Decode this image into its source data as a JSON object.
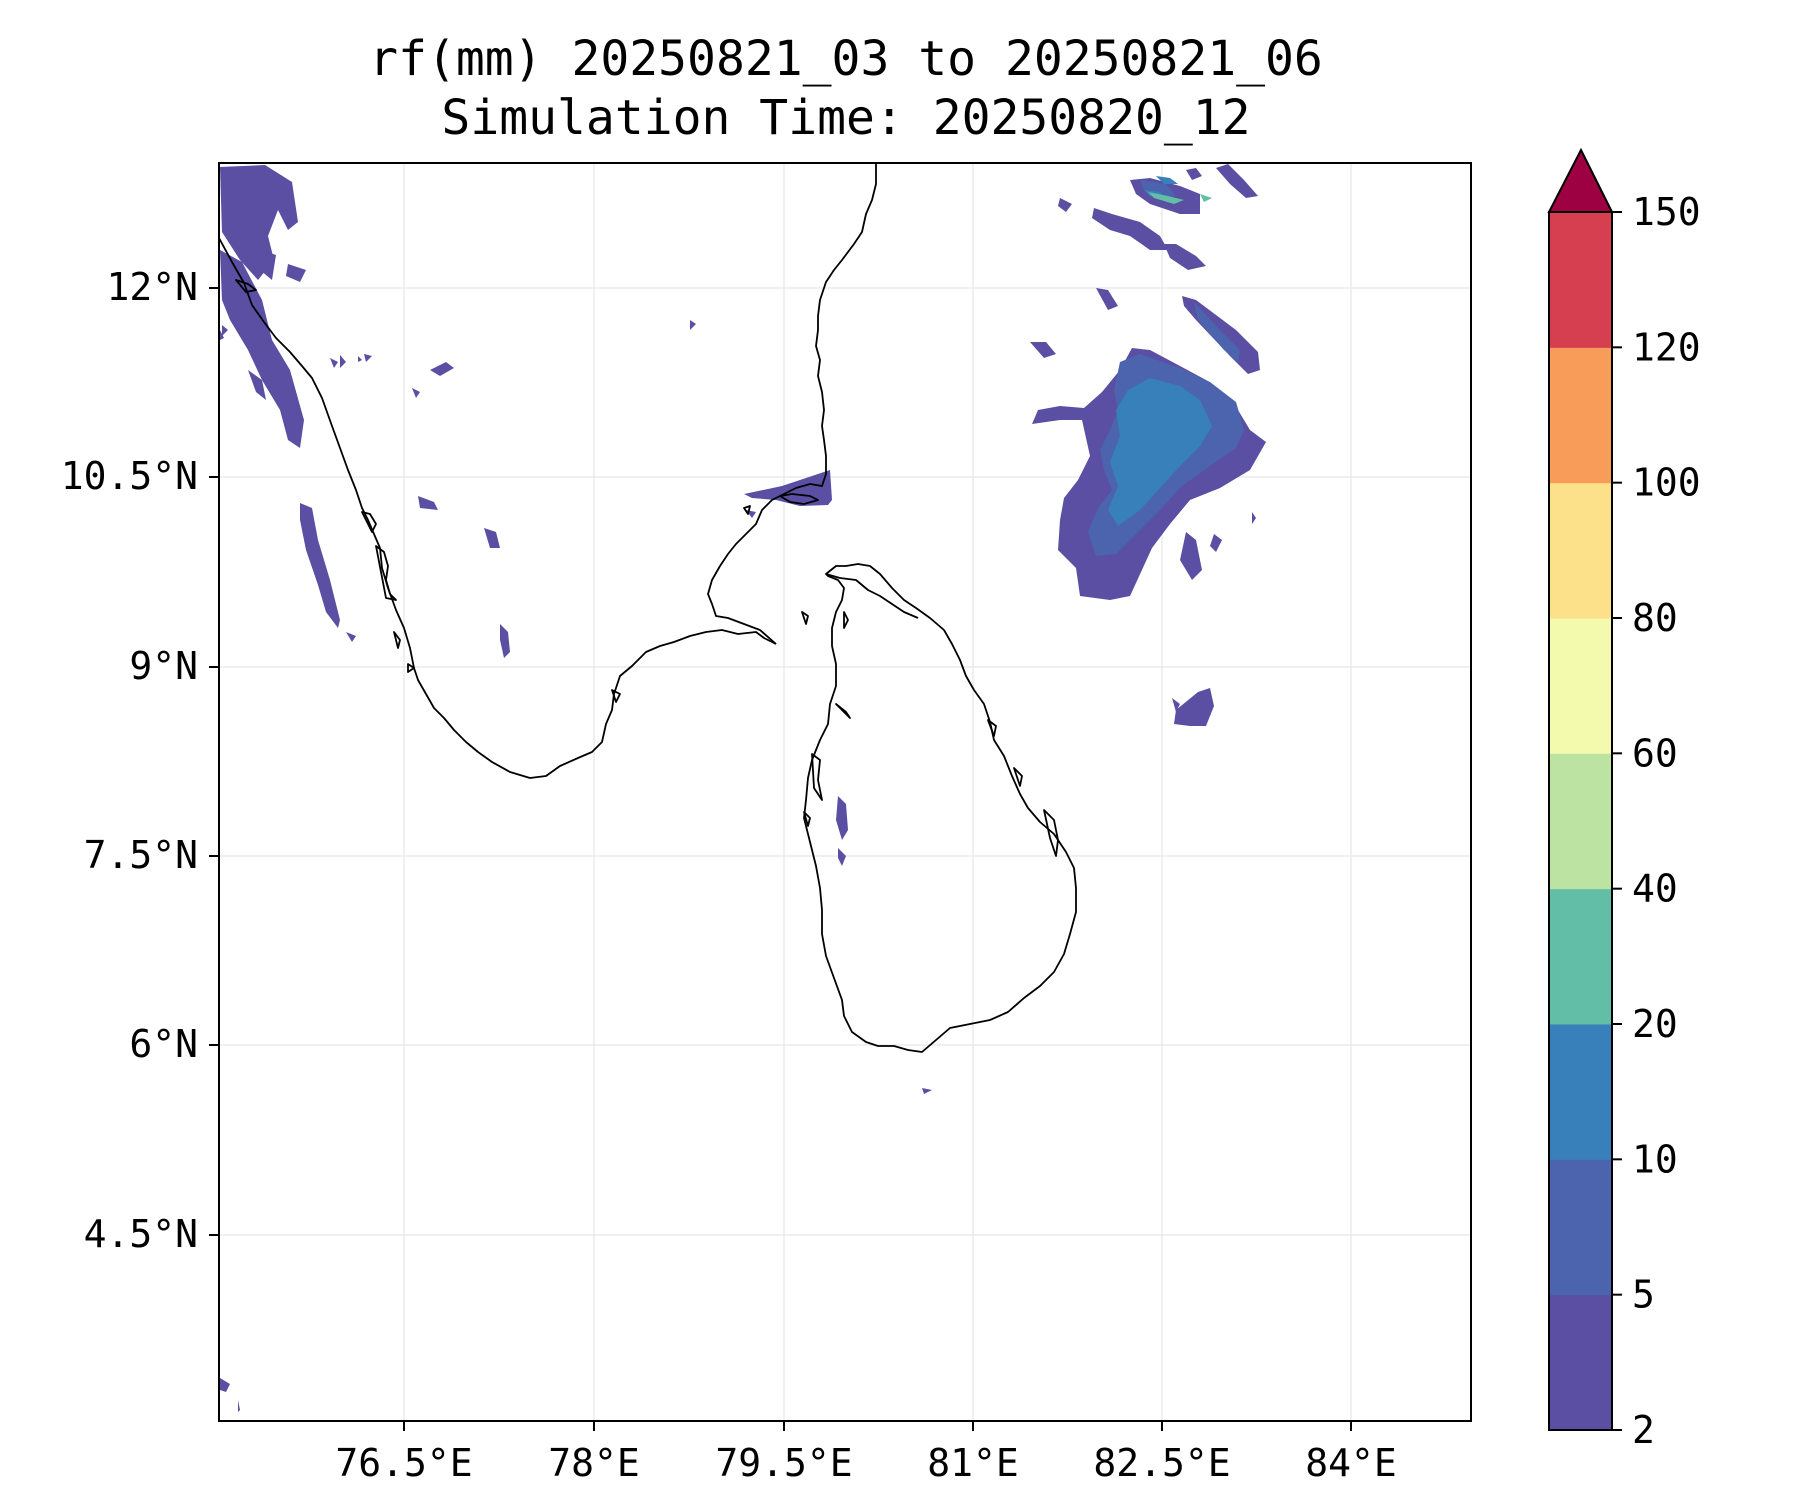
{
  "map": {
    "title_line1": "rf(mm) 20250821_03 to 20250821_06",
    "title_line2": "Simulation Time: 20250820_12",
    "lon_ticks": [
      "76.5°E",
      "78°E",
      "79.5°E",
      "81°E",
      "82.5°E",
      "84°E"
    ],
    "lat_ticks": [
      "12°N",
      "10.5°N",
      "9°N",
      "7.5°N",
      "6°N",
      "4.5°N"
    ],
    "gridlines": true,
    "coastline_color": "#000000"
  },
  "colorbar": {
    "levels": [
      "2",
      "5",
      "10",
      "20",
      "40",
      "60",
      "80",
      "100",
      "120",
      "150"
    ],
    "colors": [
      "#5a4fa2",
      "#4b64ad",
      "#3880ba",
      "#62bea7",
      "#bde3a3",
      "#f3f9ad",
      "#fce08a",
      "#f89d59",
      "#d53f4f"
    ],
    "extend_max_color": "#9e0142"
  }
}
